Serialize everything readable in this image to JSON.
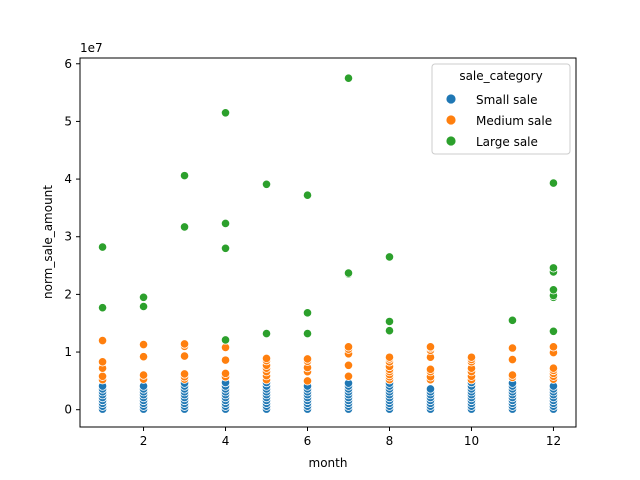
{
  "chart_data": {
    "type": "scatter",
    "xlabel": "month",
    "ylabel": "norm_sale_amount",
    "y_offset_label": "1e7",
    "xlim": [
      0.45,
      12.55
    ],
    "ylim": [
      -3000000,
      61000000
    ],
    "x_ticks": [
      2,
      4,
      6,
      8,
      10,
      12
    ],
    "y_ticks": [
      0,
      10000000,
      20000000,
      30000000,
      40000000,
      50000000,
      60000000
    ],
    "y_tick_labels": [
      "0",
      "1",
      "2",
      "3",
      "4",
      "5",
      "6"
    ],
    "grid": false,
    "legend": {
      "title": "sale_category",
      "position": "top-right",
      "entries": [
        "Small sale",
        "Medium sale",
        "Large sale"
      ]
    },
    "series": [
      {
        "name": "Small sale",
        "color": "#1f77b4",
        "points": [
          [
            1,
            100000
          ],
          [
            1,
            600000
          ],
          [
            1,
            1100000
          ],
          [
            1,
            1600000
          ],
          [
            1,
            2100000
          ],
          [
            1,
            2600000
          ],
          [
            1,
            3100000
          ],
          [
            1,
            3600000
          ],
          [
            1,
            4100000
          ],
          [
            2,
            100000
          ],
          [
            2,
            600000
          ],
          [
            2,
            1100000
          ],
          [
            2,
            1600000
          ],
          [
            2,
            2100000
          ],
          [
            2,
            2600000
          ],
          [
            2,
            3100000
          ],
          [
            2,
            3600000
          ],
          [
            2,
            4100000
          ],
          [
            3,
            100000
          ],
          [
            3,
            600000
          ],
          [
            3,
            1100000
          ],
          [
            3,
            1600000
          ],
          [
            3,
            2100000
          ],
          [
            3,
            2600000
          ],
          [
            3,
            3100000
          ],
          [
            3,
            3600000
          ],
          [
            3,
            4100000
          ],
          [
            3,
            4600000
          ],
          [
            4,
            100000
          ],
          [
            4,
            600000
          ],
          [
            4,
            1100000
          ],
          [
            4,
            1600000
          ],
          [
            4,
            2100000
          ],
          [
            4,
            2600000
          ],
          [
            4,
            3100000
          ],
          [
            4,
            3600000
          ],
          [
            4,
            4100000
          ],
          [
            4,
            4700000
          ],
          [
            5,
            100000
          ],
          [
            5,
            600000
          ],
          [
            5,
            1100000
          ],
          [
            5,
            1600000
          ],
          [
            5,
            2100000
          ],
          [
            5,
            2600000
          ],
          [
            5,
            3100000
          ],
          [
            5,
            3600000
          ],
          [
            5,
            4100000
          ],
          [
            5,
            4700000
          ],
          [
            6,
            100000
          ],
          [
            6,
            600000
          ],
          [
            6,
            1100000
          ],
          [
            6,
            1600000
          ],
          [
            6,
            2100000
          ],
          [
            6,
            2600000
          ],
          [
            6,
            3100000
          ],
          [
            6,
            3600000
          ],
          [
            6,
            4100000
          ],
          [
            7,
            100000
          ],
          [
            7,
            600000
          ],
          [
            7,
            1100000
          ],
          [
            7,
            1600000
          ],
          [
            7,
            2100000
          ],
          [
            7,
            2600000
          ],
          [
            7,
            3100000
          ],
          [
            7,
            3600000
          ],
          [
            7,
            4100000
          ],
          [
            7,
            4600000
          ],
          [
            8,
            100000
          ],
          [
            8,
            600000
          ],
          [
            8,
            1100000
          ],
          [
            8,
            1600000
          ],
          [
            8,
            2100000
          ],
          [
            8,
            2600000
          ],
          [
            8,
            3100000
          ],
          [
            8,
            3600000
          ],
          [
            8,
            4100000
          ],
          [
            8,
            4600000
          ],
          [
            9,
            100000
          ],
          [
            9,
            600000
          ],
          [
            9,
            1100000
          ],
          [
            9,
            1600000
          ],
          [
            9,
            2100000
          ],
          [
            9,
            2600000
          ],
          [
            9,
            3100000
          ],
          [
            9,
            3600000
          ],
          [
            10,
            100000
          ],
          [
            10,
            600000
          ],
          [
            10,
            1100000
          ],
          [
            10,
            1600000
          ],
          [
            10,
            2100000
          ],
          [
            10,
            2600000
          ],
          [
            10,
            3100000
          ],
          [
            10,
            3600000
          ],
          [
            10,
            4100000
          ],
          [
            10,
            4700000
          ],
          [
            11,
            100000
          ],
          [
            11,
            600000
          ],
          [
            11,
            1100000
          ],
          [
            11,
            1600000
          ],
          [
            11,
            2100000
          ],
          [
            11,
            2600000
          ],
          [
            11,
            3100000
          ],
          [
            11,
            3600000
          ],
          [
            11,
            4100000
          ],
          [
            11,
            4600000
          ],
          [
            12,
            100000
          ],
          [
            12,
            600000
          ],
          [
            12,
            1100000
          ],
          [
            12,
            1600000
          ],
          [
            12,
            2100000
          ],
          [
            12,
            2600000
          ],
          [
            12,
            3100000
          ],
          [
            12,
            3600000
          ],
          [
            12,
            4100000
          ]
        ]
      },
      {
        "name": "Medium sale",
        "color": "#ff7f0e",
        "points": [
          [
            1,
            5200000
          ],
          [
            1,
            5800000
          ],
          [
            1,
            7200000
          ],
          [
            1,
            8300000
          ],
          [
            1,
            12000000
          ],
          [
            2,
            5300000
          ],
          [
            2,
            6000000
          ],
          [
            2,
            9200000
          ],
          [
            2,
            11300000
          ],
          [
            3,
            5300000
          ],
          [
            3,
            5700000
          ],
          [
            3,
            6200000
          ],
          [
            3,
            9300000
          ],
          [
            3,
            11000000
          ],
          [
            3,
            11400000
          ],
          [
            4,
            5700000
          ],
          [
            4,
            6300000
          ],
          [
            4,
            8600000
          ],
          [
            4,
            10800000
          ],
          [
            5,
            5200000
          ],
          [
            5,
            5900000
          ],
          [
            5,
            6600000
          ],
          [
            5,
            7200000
          ],
          [
            5,
            7700000
          ],
          [
            5,
            8500000
          ],
          [
            5,
            8900000
          ],
          [
            6,
            5000000
          ],
          [
            6,
            6600000
          ],
          [
            6,
            7300000
          ],
          [
            6,
            8400000
          ],
          [
            6,
            8800000
          ],
          [
            7,
            5800000
          ],
          [
            7,
            7700000
          ],
          [
            7,
            9700000
          ],
          [
            7,
            10500000
          ],
          [
            7,
            10900000
          ],
          [
            8,
            5200000
          ],
          [
            8,
            5700000
          ],
          [
            8,
            6100000
          ],
          [
            8,
            6600000
          ],
          [
            8,
            7000000
          ],
          [
            8,
            7500000
          ],
          [
            8,
            8300000
          ],
          [
            8,
            8800000
          ],
          [
            8,
            9100000
          ],
          [
            9,
            5200000
          ],
          [
            9,
            5700000
          ],
          [
            9,
            6600000
          ],
          [
            9,
            7000000
          ],
          [
            9,
            9100000
          ],
          [
            9,
            10300000
          ],
          [
            9,
            10700000
          ],
          [
            9,
            10900000
          ],
          [
            10,
            5200000
          ],
          [
            10,
            5800000
          ],
          [
            10,
            6600000
          ],
          [
            10,
            7200000
          ],
          [
            10,
            8300000
          ],
          [
            10,
            8700000
          ],
          [
            10,
            9100000
          ],
          [
            11,
            5600000
          ],
          [
            11,
            6000000
          ],
          [
            11,
            8700000
          ],
          [
            11,
            10700000
          ],
          [
            12,
            5300000
          ],
          [
            12,
            5800000
          ],
          [
            12,
            6300000
          ],
          [
            12,
            6800000
          ],
          [
            12,
            7200000
          ],
          [
            12,
            9900000
          ],
          [
            12,
            10900000
          ]
        ]
      },
      {
        "name": "Large sale",
        "color": "#2ca02c",
        "points": [
          [
            1,
            17700000
          ],
          [
            1,
            28200000
          ],
          [
            2,
            17900000
          ],
          [
            2,
            19500000
          ],
          [
            3,
            31700000
          ],
          [
            3,
            40600000
          ],
          [
            4,
            12100000
          ],
          [
            4,
            28000000
          ],
          [
            4,
            32300000
          ],
          [
            4,
            51500000
          ],
          [
            5,
            13200000
          ],
          [
            5,
            39100000
          ],
          [
            6,
            13200000
          ],
          [
            6,
            16800000
          ],
          [
            6,
            37200000
          ],
          [
            7,
            23500000
          ],
          [
            7,
            23700000
          ],
          [
            7,
            57500000
          ],
          [
            8,
            13700000
          ],
          [
            8,
            15300000
          ],
          [
            8,
            26500000
          ],
          [
            11,
            15500000
          ],
          [
            12,
            13600000
          ],
          [
            12,
            19500000
          ],
          [
            12,
            19800000
          ],
          [
            12,
            20800000
          ],
          [
            12,
            23900000
          ],
          [
            12,
            24600000
          ],
          [
            12,
            39300000
          ]
        ]
      }
    ]
  }
}
